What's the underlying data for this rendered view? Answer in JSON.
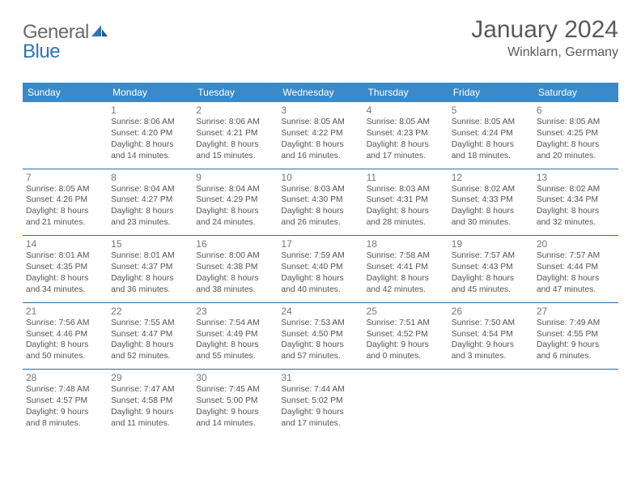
{
  "logo": {
    "text1": "General",
    "text2": "Blue"
  },
  "title": "January 2024",
  "location": "Winklarn, Germany",
  "colors": {
    "header_bg": "#3a8ac9",
    "header_fg": "#ffffff",
    "row_border": "#2e6da4",
    "text": "#555555",
    "logo_gray": "#6a6a6a",
    "logo_blue": "#2f75b5"
  },
  "weekdays": [
    "Sunday",
    "Monday",
    "Tuesday",
    "Wednesday",
    "Thursday",
    "Friday",
    "Saturday"
  ],
  "weeks": [
    [
      null,
      {
        "n": "1",
        "sr": "Sunrise: 8:06 AM",
        "ss": "Sunset: 4:20 PM",
        "dl1": "Daylight: 8 hours",
        "dl2": "and 14 minutes."
      },
      {
        "n": "2",
        "sr": "Sunrise: 8:06 AM",
        "ss": "Sunset: 4:21 PM",
        "dl1": "Daylight: 8 hours",
        "dl2": "and 15 minutes."
      },
      {
        "n": "3",
        "sr": "Sunrise: 8:05 AM",
        "ss": "Sunset: 4:22 PM",
        "dl1": "Daylight: 8 hours",
        "dl2": "and 16 minutes."
      },
      {
        "n": "4",
        "sr": "Sunrise: 8:05 AM",
        "ss": "Sunset: 4:23 PM",
        "dl1": "Daylight: 8 hours",
        "dl2": "and 17 minutes."
      },
      {
        "n": "5",
        "sr": "Sunrise: 8:05 AM",
        "ss": "Sunset: 4:24 PM",
        "dl1": "Daylight: 8 hours",
        "dl2": "and 18 minutes."
      },
      {
        "n": "6",
        "sr": "Sunrise: 8:05 AM",
        "ss": "Sunset: 4:25 PM",
        "dl1": "Daylight: 8 hours",
        "dl2": "and 20 minutes."
      }
    ],
    [
      {
        "n": "7",
        "sr": "Sunrise: 8:05 AM",
        "ss": "Sunset: 4:26 PM",
        "dl1": "Daylight: 8 hours",
        "dl2": "and 21 minutes."
      },
      {
        "n": "8",
        "sr": "Sunrise: 8:04 AM",
        "ss": "Sunset: 4:27 PM",
        "dl1": "Daylight: 8 hours",
        "dl2": "and 23 minutes."
      },
      {
        "n": "9",
        "sr": "Sunrise: 8:04 AM",
        "ss": "Sunset: 4:29 PM",
        "dl1": "Daylight: 8 hours",
        "dl2": "and 24 minutes."
      },
      {
        "n": "10",
        "sr": "Sunrise: 8:03 AM",
        "ss": "Sunset: 4:30 PM",
        "dl1": "Daylight: 8 hours",
        "dl2": "and 26 minutes."
      },
      {
        "n": "11",
        "sr": "Sunrise: 8:03 AM",
        "ss": "Sunset: 4:31 PM",
        "dl1": "Daylight: 8 hours",
        "dl2": "and 28 minutes."
      },
      {
        "n": "12",
        "sr": "Sunrise: 8:02 AM",
        "ss": "Sunset: 4:33 PM",
        "dl1": "Daylight: 8 hours",
        "dl2": "and 30 minutes."
      },
      {
        "n": "13",
        "sr": "Sunrise: 8:02 AM",
        "ss": "Sunset: 4:34 PM",
        "dl1": "Daylight: 8 hours",
        "dl2": "and 32 minutes."
      }
    ],
    [
      {
        "n": "14",
        "sr": "Sunrise: 8:01 AM",
        "ss": "Sunset: 4:35 PM",
        "dl1": "Daylight: 8 hours",
        "dl2": "and 34 minutes."
      },
      {
        "n": "15",
        "sr": "Sunrise: 8:01 AM",
        "ss": "Sunset: 4:37 PM",
        "dl1": "Daylight: 8 hours",
        "dl2": "and 36 minutes."
      },
      {
        "n": "16",
        "sr": "Sunrise: 8:00 AM",
        "ss": "Sunset: 4:38 PM",
        "dl1": "Daylight: 8 hours",
        "dl2": "and 38 minutes."
      },
      {
        "n": "17",
        "sr": "Sunrise: 7:59 AM",
        "ss": "Sunset: 4:40 PM",
        "dl1": "Daylight: 8 hours",
        "dl2": "and 40 minutes."
      },
      {
        "n": "18",
        "sr": "Sunrise: 7:58 AM",
        "ss": "Sunset: 4:41 PM",
        "dl1": "Daylight: 8 hours",
        "dl2": "and 42 minutes."
      },
      {
        "n": "19",
        "sr": "Sunrise: 7:57 AM",
        "ss": "Sunset: 4:43 PM",
        "dl1": "Daylight: 8 hours",
        "dl2": "and 45 minutes."
      },
      {
        "n": "20",
        "sr": "Sunrise: 7:57 AM",
        "ss": "Sunset: 4:44 PM",
        "dl1": "Daylight: 8 hours",
        "dl2": "and 47 minutes."
      }
    ],
    [
      {
        "n": "21",
        "sr": "Sunrise: 7:56 AM",
        "ss": "Sunset: 4:46 PM",
        "dl1": "Daylight: 8 hours",
        "dl2": "and 50 minutes."
      },
      {
        "n": "22",
        "sr": "Sunrise: 7:55 AM",
        "ss": "Sunset: 4:47 PM",
        "dl1": "Daylight: 8 hours",
        "dl2": "and 52 minutes."
      },
      {
        "n": "23",
        "sr": "Sunrise: 7:54 AM",
        "ss": "Sunset: 4:49 PM",
        "dl1": "Daylight: 8 hours",
        "dl2": "and 55 minutes."
      },
      {
        "n": "24",
        "sr": "Sunrise: 7:53 AM",
        "ss": "Sunset: 4:50 PM",
        "dl1": "Daylight: 8 hours",
        "dl2": "and 57 minutes."
      },
      {
        "n": "25",
        "sr": "Sunrise: 7:51 AM",
        "ss": "Sunset: 4:52 PM",
        "dl1": "Daylight: 9 hours",
        "dl2": "and 0 minutes."
      },
      {
        "n": "26",
        "sr": "Sunrise: 7:50 AM",
        "ss": "Sunset: 4:54 PM",
        "dl1": "Daylight: 9 hours",
        "dl2": "and 3 minutes."
      },
      {
        "n": "27",
        "sr": "Sunrise: 7:49 AM",
        "ss": "Sunset: 4:55 PM",
        "dl1": "Daylight: 9 hours",
        "dl2": "and 6 minutes."
      }
    ],
    [
      {
        "n": "28",
        "sr": "Sunrise: 7:48 AM",
        "ss": "Sunset: 4:57 PM",
        "dl1": "Daylight: 9 hours",
        "dl2": "and 8 minutes."
      },
      {
        "n": "29",
        "sr": "Sunrise: 7:47 AM",
        "ss": "Sunset: 4:58 PM",
        "dl1": "Daylight: 9 hours",
        "dl2": "and 11 minutes."
      },
      {
        "n": "30",
        "sr": "Sunrise: 7:45 AM",
        "ss": "Sunset: 5:00 PM",
        "dl1": "Daylight: 9 hours",
        "dl2": "and 14 minutes."
      },
      {
        "n": "31",
        "sr": "Sunrise: 7:44 AM",
        "ss": "Sunset: 5:02 PM",
        "dl1": "Daylight: 9 hours",
        "dl2": "and 17 minutes."
      },
      null,
      null,
      null
    ]
  ]
}
